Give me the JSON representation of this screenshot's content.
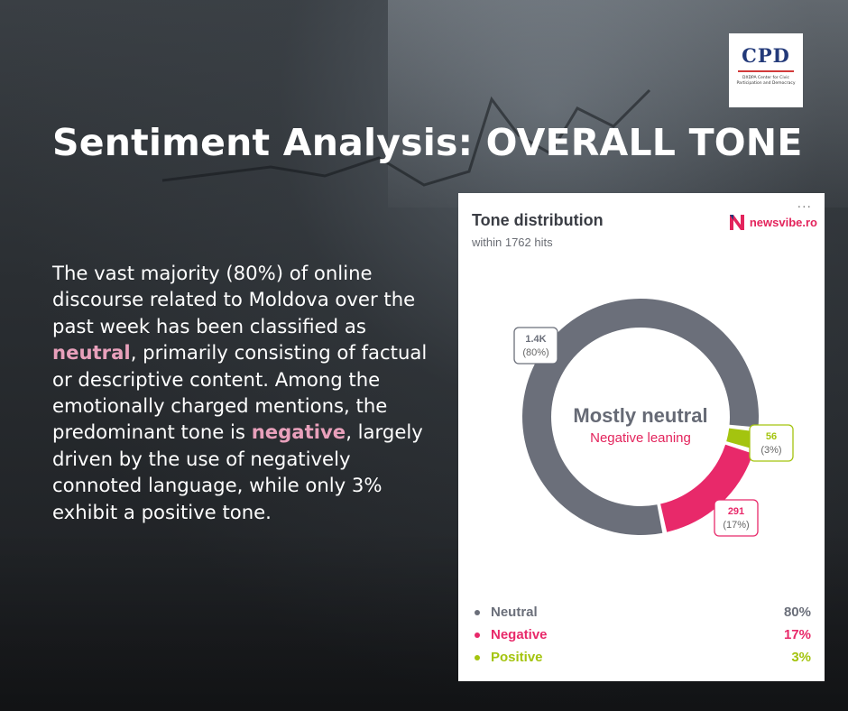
{
  "logo": {
    "acronym": "CPD",
    "subtitle": "DXDPA Center for Civic Participation and Democracy"
  },
  "title": "Sentiment Analysis: OVERALL TONE",
  "body": {
    "p1": "The vast majority (80%) of online discourse related to Moldova over the past week has been classified as ",
    "neutral_word": "neutral",
    "p2": ", primarily consisting of factual or descriptive content. Among the emotionally charged mentions, the predominant tone is ",
    "negative_word": "negative",
    "p3": ", largely driven by the use of negatively connoted language, while only 3% exhibit a positive tone."
  },
  "card": {
    "title": "Tone distribution",
    "subtitle": "within 1762 hits",
    "menu": "...",
    "brand": "newsvibe.ro"
  },
  "chart_data": {
    "type": "pie",
    "total_hits": 1762,
    "center_label": "Mostly neutral",
    "center_sublabel": "Negative leaning",
    "slices": [
      {
        "name": "Neutral",
        "value_label": "1.4K",
        "pct_label": "(80%)",
        "percent": 80,
        "color": "#6b6f7a"
      },
      {
        "name": "Negative",
        "value_label": "291",
        "pct_label": "(17%)",
        "percent": 17,
        "color": "#e8296a"
      },
      {
        "name": "Positive",
        "value_label": "56",
        "pct_label": "(3%)",
        "percent": 3,
        "color": "#a4c40f"
      }
    ],
    "legend": [
      {
        "name": "Neutral",
        "value": "80%",
        "color": "#6b6f7a"
      },
      {
        "name": "Negative",
        "value": "17%",
        "color": "#e8296a"
      },
      {
        "name": "Positive",
        "value": "3%",
        "color": "#a4c40f"
      }
    ]
  }
}
